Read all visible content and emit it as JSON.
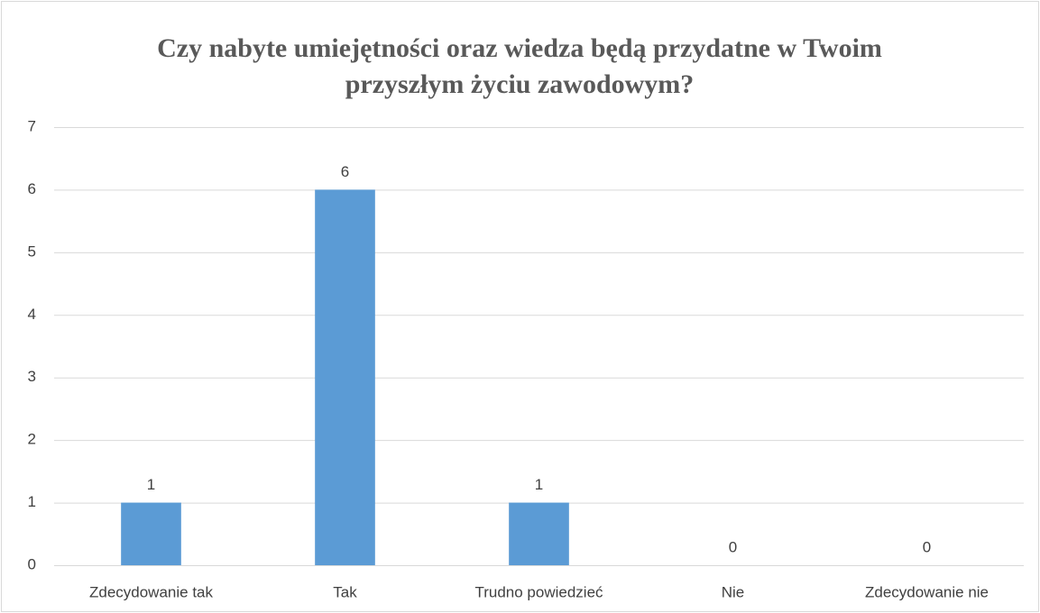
{
  "chart_data": {
    "type": "bar",
    "title": "Czy nabyte umiejętności oraz wiedza będą przydatne w Twoim przyszłym życiu zawodowym?",
    "categories": [
      "Zdecydowanie tak",
      "Tak",
      "Trudno powiedzieć",
      "Nie",
      "Zdecydowanie nie"
    ],
    "values": [
      1,
      6,
      1,
      0,
      0
    ],
    "color": "#5b9bd5",
    "ylim": [
      0,
      7
    ],
    "yticks": [
      0,
      1,
      2,
      3,
      4,
      5,
      6,
      7
    ],
    "grid": true,
    "value_labels_shown": true
  }
}
